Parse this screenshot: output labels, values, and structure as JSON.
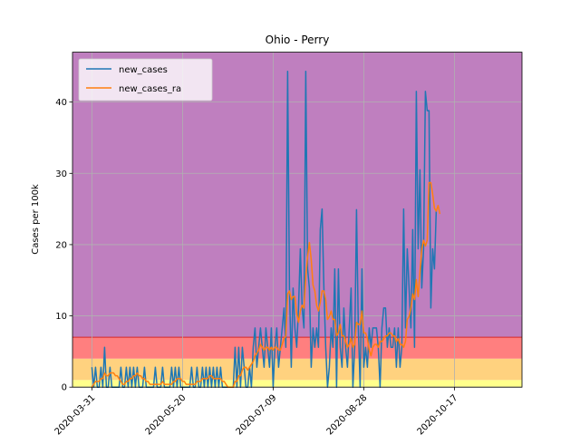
{
  "chart_data": {
    "type": "line",
    "title": "Ohio - Perry",
    "xlabel": "",
    "ylabel": "Cases per 100k",
    "ylim": [
      0,
      47
    ],
    "yticks": [
      0,
      10,
      20,
      30,
      40
    ],
    "xticks": [
      "2020-03-31",
      "2020-05-20",
      "2020-07-09",
      "2020-08-28",
      "2020-10-17"
    ],
    "x_start": "2020-03-31",
    "grid": true,
    "legend_position": "top-left",
    "risk_bands": [
      {
        "from": 0,
        "to": 1,
        "color": "#ffff8c"
      },
      {
        "from": 1,
        "to": 4,
        "color": "#ffd27f"
      },
      {
        "from": 4,
        "to": 7,
        "color": "#ff7f7f"
      },
      {
        "from": 7,
        "to": 47,
        "color": "#bf7fbf"
      }
    ],
    "series": [
      {
        "name": "new_cases",
        "color": "#1f77b4",
        "values": [
          2.8,
          0,
          2.8,
          0,
          0,
          2.8,
          0,
          5.6,
          0,
          0,
          2.8,
          0,
          0,
          0,
          0,
          0,
          2.8,
          0,
          0,
          2.8,
          0,
          2.8,
          0,
          2.8,
          0,
          2.8,
          0,
          0,
          0,
          2.8,
          0,
          0,
          0,
          0,
          0,
          2.8,
          0,
          0,
          0,
          2.8,
          0,
          0,
          0,
          0,
          2.8,
          0,
          2.8,
          0,
          2.8,
          0,
          0,
          0,
          0,
          0,
          0,
          2.8,
          0,
          0,
          2.8,
          0,
          0,
          2.8,
          0,
          2.8,
          0,
          2.8,
          0,
          2.8,
          0,
          2.8,
          0,
          2.8,
          0,
          0,
          0,
          0,
          0,
          0,
          0,
          5.6,
          0,
          5.6,
          0,
          5.6,
          2.8,
          0,
          0,
          2.8,
          0,
          5.6,
          8.3,
          2.8,
          5.6,
          8.3,
          5.6,
          2.8,
          8.3,
          5.6,
          2.8,
          8.3,
          0,
          5.6,
          8.3,
          2.8,
          5.6,
          8.3,
          11.1,
          5.6,
          44.3,
          13.9,
          2.8,
          13.9,
          8.3,
          5.6,
          11.1,
          19.4,
          11.1,
          8.3,
          44.3,
          16.6,
          13.9,
          2.8,
          8.3,
          5.6,
          8.3,
          5.6,
          22.1,
          25,
          13.9,
          5.6,
          0,
          2.8,
          8.3,
          5.6,
          16.6,
          0,
          16.6,
          5.6,
          2.8,
          11.1,
          5.6,
          2.8,
          8.3,
          13.9,
          0,
          5.6,
          24.9,
          8.3,
          0,
          16.6,
          2.8,
          5.6,
          2.8,
          8.3,
          5.6,
          8.3,
          8.3,
          8.3,
          5.6,
          0,
          8.3,
          11.1,
          11.1,
          5.6,
          8.3,
          5.6,
          5.6,
          8.3,
          2.8,
          8.3,
          2.8,
          5.6,
          25,
          8.3,
          19.4,
          13.9,
          8.3,
          22.1,
          5.6,
          41.5,
          19.4,
          30.5,
          13.9,
          19.4,
          41.5,
          38.8,
          38.8,
          11.1,
          19.4,
          16.6,
          24.9
        ],
        "ra_values": [
          0,
          0.4,
          0.8,
          0.8,
          0.8,
          1.2,
          1.2,
          2,
          1.6,
          1.6,
          2,
          2,
          2,
          1.6,
          1.6,
          1.2,
          0.8,
          0.4,
          0.4,
          0.8,
          0.8,
          1.2,
          1.2,
          1.6,
          1.6,
          2,
          1.6,
          1.6,
          1.2,
          1.2,
          0.8,
          0.8,
          0.4,
          0.4,
          0.4,
          0.4,
          0.4,
          0.4,
          0.4,
          0.8,
          0.4,
          0.4,
          0.4,
          0.4,
          0.4,
          0.8,
          0.8,
          1.2,
          1.2,
          1.2,
          0.8,
          0.8,
          0.4,
          0.4,
          0.4,
          0.4,
          0.4,
          0.4,
          0.8,
          0.8,
          0.8,
          1.2,
          1.2,
          1.2,
          1.2,
          1.6,
          1.6,
          1.2,
          1.2,
          1.2,
          1.2,
          1.2,
          0.8,
          0.8,
          0.4,
          0,
          0,
          0,
          0,
          0.8,
          0.8,
          1.6,
          1.6,
          2.4,
          2.8,
          2.8,
          2.4,
          2.8,
          3.2,
          3.6,
          4.4,
          4.8,
          5.2,
          6,
          5.6,
          5.2,
          5.6,
          5.6,
          5.2,
          5.6,
          5.2,
          5.6,
          5.6,
          5.2,
          5.2,
          6,
          6.8,
          7.2,
          13.1,
          13.5,
          12.3,
          12.7,
          12.7,
          10.3,
          9.1,
          10.7,
          11.5,
          11.1,
          15.5,
          18.3,
          20.3,
          17.9,
          14.3,
          13.5,
          11.5,
          10.7,
          11.9,
          13.5,
          13.5,
          12.3,
          9.5,
          9.9,
          10.7,
          9.5,
          9.5,
          7.2,
          7.6,
          8.8,
          7.2,
          7.2,
          6.4,
          5.6,
          6,
          6.8,
          5.6,
          6,
          9.1,
          8.8,
          8.8,
          10.7,
          7.6,
          7.6,
          6.8,
          5.2,
          4.4,
          5.6,
          6,
          6,
          5.6,
          6.4,
          6.4,
          6.8,
          7.2,
          7.2,
          7.6,
          7.6,
          7.2,
          7.2,
          6.4,
          6.8,
          6,
          6,
          5.6,
          6.4,
          9.5,
          9.9,
          11.1,
          13.1,
          12.3,
          15.1,
          12.7,
          16.2,
          19.4,
          20.6,
          19.8,
          20.6,
          28.7,
          28.7,
          27.1,
          25.1,
          24.7,
          25.5,
          24.3
        ]
      }
    ],
    "legend": [
      {
        "label": "new_cases",
        "color": "#1f77b4"
      },
      {
        "label": "new_cases_ra",
        "color": "#ff7f0e"
      }
    ]
  }
}
